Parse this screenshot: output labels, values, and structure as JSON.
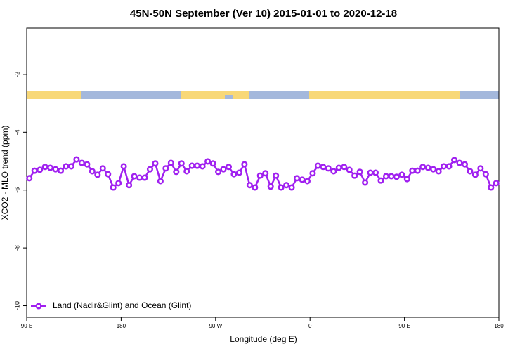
{
  "chart_data": {
    "type": "line",
    "title": "45N-50N September (Ver 10)   2015-01-01 to 2020-12-18",
    "x_label": "Longitude (deg E)",
    "y_label": "XCO2 - MLO trend (ppm)",
    "xlim": [
      90,
      540
    ],
    "xticks": [
      {
        "value": 90,
        "label": "90 E"
      },
      {
        "value": 180,
        "label": "180"
      },
      {
        "value": 270,
        "label": "90 W"
      },
      {
        "value": 360,
        "label": "0"
      },
      {
        "value": 450,
        "label": "90 E"
      },
      {
        "value": 540,
        "label": "180"
      }
    ],
    "ylim": [
      -10.4,
      -0.4
    ],
    "yticks": [
      -2,
      -4,
      -6,
      -8,
      -10
    ],
    "legend": "bottom-left",
    "x": [
      92.5,
      97.5,
      102.5,
      107.5,
      112.5,
      117.5,
      122.5,
      127.5,
      132.5,
      137.5,
      142.5,
      147.5,
      152.5,
      157.5,
      162.5,
      167.5,
      172.5,
      177.5,
      182.5,
      187.5,
      192.5,
      197.5,
      202.5,
      207.5,
      212.5,
      217.5,
      222.5,
      227.5,
      232.5,
      237.5,
      242.5,
      247.5,
      252.5,
      257.5,
      262.5,
      267.5,
      272.5,
      277.5,
      282.5,
      287.5,
      292.5,
      297.5,
      302.5,
      307.5,
      312.5,
      317.5,
      322.5,
      327.5,
      332.5,
      337.5,
      342.5,
      347.5,
      352.5,
      357.5,
      362.5,
      367.5,
      372.5,
      377.5,
      382.5,
      387.5,
      392.5,
      397.5,
      402.5,
      407.5,
      412.5,
      417.5,
      422.5,
      427.5,
      432.5,
      437.5,
      442.5,
      447.5,
      452.5,
      457.5,
      462.5,
      467.5,
      472.5,
      477.5,
      482.5,
      487.5,
      492.5,
      497.5,
      502.5,
      507.5,
      512.5,
      517.5,
      522.5,
      527.5,
      532.5,
      537.5
    ],
    "series": [
      {
        "name": "Land (Nadir&Glint) and Ocean (Glint)",
        "color": "#a020f0",
        "values": [
          -5.59,
          -5.33,
          -5.3,
          -5.2,
          -5.23,
          -5.28,
          -5.33,
          -5.18,
          -5.18,
          -4.94,
          -5.06,
          -5.11,
          -5.35,
          -5.47,
          -5.25,
          -5.45,
          -5.91,
          -5.76,
          -5.18,
          -5.83,
          -5.52,
          -5.57,
          -5.57,
          -5.28,
          -5.08,
          -5.69,
          -5.25,
          -5.06,
          -5.37,
          -5.08,
          -5.35,
          -5.16,
          -5.16,
          -5.18,
          -5.01,
          -5.08,
          -5.37,
          -5.28,
          -5.2,
          -5.45,
          -5.4,
          -5.11,
          -5.83,
          -5.91,
          -5.5,
          -5.42,
          -5.88,
          -5.5,
          -5.91,
          -5.83,
          -5.91,
          -5.59,
          -5.64,
          -5.69,
          -5.42,
          -5.16,
          -5.2,
          -5.25,
          -5.35,
          -5.23,
          -5.2,
          -5.3,
          -5.5,
          -5.37,
          -5.74,
          -5.4,
          -5.4,
          -5.67,
          -5.52,
          -5.52,
          -5.54,
          -5.47,
          -5.62,
          -5.33,
          -5.33,
          -5.2,
          -5.23,
          -5.28,
          -5.35,
          -5.18,
          -5.18,
          -4.96,
          -5.06,
          -5.11,
          -5.35,
          -5.47,
          -5.25,
          -5.45,
          -5.91,
          -5.76
        ]
      }
    ]
  }
}
